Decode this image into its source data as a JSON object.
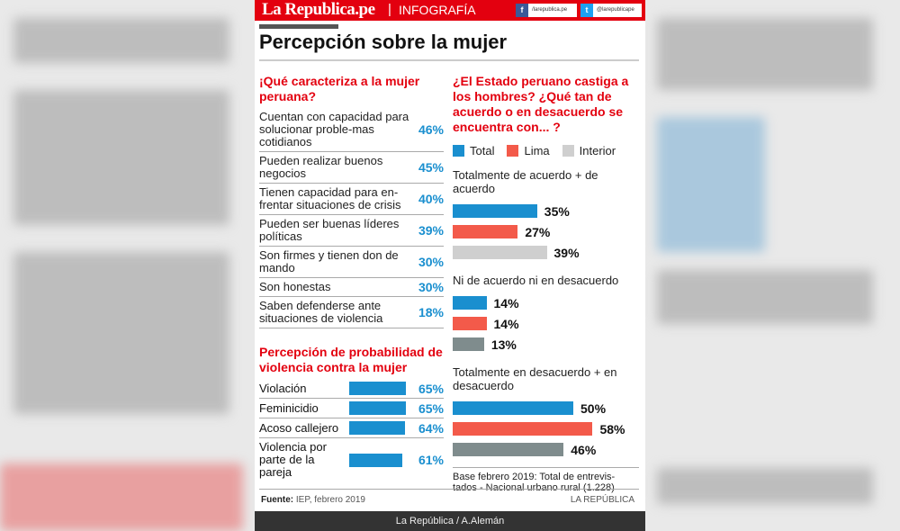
{
  "header": {
    "logo": "La Republica.pe",
    "separator": "|",
    "section": "INFOGRAFÍA",
    "facebook": "/larepublica.pe",
    "twitter": "@larepublicape"
  },
  "title": "Percepción sobre la mujer",
  "left": {
    "heading": "¡Qué caracteriza a la mujer peruana?",
    "items": [
      {
        "label": "Cuentan con capacidad para solucionar proble-mas cotidianos",
        "value": "46%"
      },
      {
        "label": "Pueden realizar buenos negocios",
        "value": "45%"
      },
      {
        "label": "Tienen capacidad para en-frentar situaciones de crisis",
        "value": "40%"
      },
      {
        "label": "Pueden ser buenas líderes políticas",
        "value": "39%"
      },
      {
        "label": "Son firmes y tienen don de mando",
        "value": "30%"
      },
      {
        "label": "Son honestas",
        "value": "30%"
      },
      {
        "label": "Saben defenderse ante situaciones de violencia",
        "value": "18%"
      }
    ],
    "violence_heading": "Percepción de probabilidad de violencia contra la mujer"
  },
  "right": {
    "heading": "¿El Estado peruano castiga a los hombres? ¿Qué tan de acuerdo o en desacuerdo se encuentra con... ?",
    "note": "Base febrero 2019: Total de entrevis-tados - Nacional urbano rural (1.228)"
  },
  "colors": {
    "total": "#1a8fcf",
    "lima": "#f35a4a",
    "interior_light": "#cfcfcf",
    "interior_dark": "#7f8c8d",
    "brand": "#e3000f"
  },
  "chart_data": [
    {
      "type": "bar",
      "orientation": "horizontal",
      "categories": [
        "Violación",
        "Feminicidio",
        "Acoso callejero",
        "Violencia por parte de la pareja"
      ],
      "values": [
        65,
        65,
        64,
        61
      ],
      "labels": [
        "65%",
        "65%",
        "64%",
        "61%"
      ]
    },
    {
      "type": "bar",
      "orientation": "horizontal",
      "legend": [
        "Total",
        "Lima",
        "Interior"
      ],
      "legend_position": "top",
      "categories": [
        "Totalmente de acuerdo + de acuerdo",
        "Ni de acuerdo ni en desacuerdo",
        "Totalmente en desacuerdo + en desacuerdo"
      ],
      "series": [
        {
          "name": "Total",
          "values": [
            35,
            14,
            50
          ],
          "labels": [
            "35%",
            "14%",
            "50%"
          ]
        },
        {
          "name": "Lima",
          "values": [
            27,
            14,
            58
          ],
          "labels": [
            "27%",
            "14%",
            "58%"
          ]
        },
        {
          "name": "Interior",
          "values": [
            39,
            13,
            46
          ],
          "labels": [
            "39%",
            "13%",
            "46%"
          ]
        }
      ]
    }
  ],
  "footer": {
    "source_label": "Fuente:",
    "source": "IEP,  febrero 2019",
    "brand": "LA REPÚBLICA",
    "credit": "La República / A.Alemán"
  }
}
